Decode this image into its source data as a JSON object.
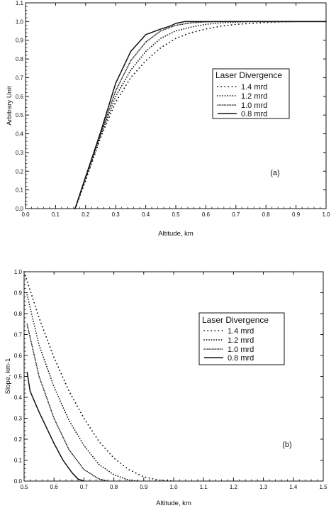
{
  "chart_data": [
    {
      "type": "line",
      "panel_label": "(a)",
      "xlabel": "Altitude, km",
      "ylabel": "Arbitrary Unit",
      "xlim": [
        0.0,
        1.0
      ],
      "ylim": [
        0.0,
        1.1
      ],
      "xticks": [
        "0.0",
        "0.1",
        "0.2",
        "0.3",
        "0.4",
        "0.5",
        "0.6",
        "0.7",
        "0.8",
        "0.9",
        "1.0"
      ],
      "yticks": [
        "0.0",
        "0.1",
        "0.2",
        "0.3",
        "0.4",
        "0.5",
        "0.6",
        "0.7",
        "0.8",
        "0.9",
        "1.0",
        "1.1"
      ],
      "legend_title": "Laser Divergence",
      "legend_position": "center-right",
      "grid": false,
      "series": [
        {
          "name": "1.4 mrd",
          "style": "sparse-dot",
          "x": [
            0.165,
            0.2,
            0.25,
            0.3,
            0.35,
            0.4,
            0.45,
            0.5,
            0.55,
            0.6,
            0.65,
            0.7,
            0.75,
            0.8,
            0.85,
            0.9,
            0.95,
            1.0
          ],
          "y": [
            0.0,
            0.15,
            0.38,
            0.57,
            0.7,
            0.79,
            0.86,
            0.91,
            0.94,
            0.96,
            0.975,
            0.985,
            0.99,
            0.995,
            0.998,
            1.0,
            1.0,
            1.0
          ]
        },
        {
          "name": "1.2 mrd",
          "style": "dot",
          "x": [
            0.165,
            0.2,
            0.25,
            0.3,
            0.35,
            0.4,
            0.45,
            0.5,
            0.55,
            0.6,
            0.65,
            0.7,
            0.75,
            0.8,
            0.85,
            0.9,
            0.95,
            1.0
          ],
          "y": [
            0.0,
            0.16,
            0.39,
            0.6,
            0.74,
            0.84,
            0.91,
            0.95,
            0.97,
            0.985,
            0.993,
            0.997,
            1.0,
            1.0,
            1.0,
            1.0,
            1.0,
            1.0
          ]
        },
        {
          "name": "1.0 mrd",
          "style": "dense-dot",
          "x": [
            0.165,
            0.2,
            0.25,
            0.3,
            0.35,
            0.4,
            0.45,
            0.5,
            0.55,
            0.6,
            0.65,
            0.7,
            0.75,
            0.8,
            0.85,
            0.9,
            0.95,
            1.0
          ],
          "y": [
            0.0,
            0.17,
            0.4,
            0.63,
            0.79,
            0.89,
            0.95,
            0.98,
            0.993,
            0.998,
            1.0,
            1.0,
            1.0,
            1.0,
            1.0,
            1.0,
            1.0,
            1.0
          ]
        },
        {
          "name": "0.8 mrd",
          "style": "solid",
          "x": [
            0.165,
            0.2,
            0.25,
            0.3,
            0.35,
            0.4,
            0.45,
            0.48,
            0.5,
            0.53,
            0.55,
            0.6,
            0.7,
            0.8,
            0.9,
            1.0
          ],
          "y": [
            0.0,
            0.17,
            0.41,
            0.67,
            0.84,
            0.93,
            0.96,
            0.975,
            0.99,
            1.0,
            1.0,
            1.0,
            1.0,
            1.0,
            1.0,
            1.0
          ]
        }
      ]
    },
    {
      "type": "line",
      "panel_label": "(b)",
      "xlabel": "Altitude, km",
      "ylabel": "Slope, km-1",
      "xlim": [
        0.5,
        1.5
      ],
      "ylim": [
        0.0,
        1.0
      ],
      "xticks": [
        "0.5",
        "0.6",
        "0.7",
        "0.8",
        "0.9",
        "1.0",
        "1.1",
        "1.2",
        "1.3",
        "1.4",
        "1.5"
      ],
      "yticks": [
        "0.0",
        "0.1",
        "0.2",
        "0.3",
        "0.4",
        "0.5",
        "0.6",
        "0.7",
        "0.8",
        "0.9",
        "1.0"
      ],
      "legend_title": "Laser Divergence",
      "legend_position": "center-right",
      "grid": false,
      "series": [
        {
          "name": "1.4 mrd",
          "style": "sparse-dot",
          "x": [
            0.5,
            0.55,
            0.6,
            0.65,
            0.7,
            0.75,
            0.8,
            0.85,
            0.9,
            0.95,
            1.0
          ],
          "y": [
            1.0,
            0.78,
            0.59,
            0.43,
            0.3,
            0.19,
            0.11,
            0.055,
            0.02,
            0.005,
            0.0
          ]
        },
        {
          "name": "1.2 mrd",
          "style": "dot",
          "x": [
            0.51,
            0.55,
            0.6,
            0.65,
            0.7,
            0.75,
            0.8,
            0.85,
            0.88
          ],
          "y": [
            0.89,
            0.65,
            0.45,
            0.29,
            0.17,
            0.08,
            0.03,
            0.005,
            0.0
          ]
        },
        {
          "name": "1.0 mrd",
          "style": "dense-dot",
          "x": [
            0.51,
            0.55,
            0.6,
            0.65,
            0.7,
            0.75,
            0.78
          ],
          "y": [
            0.75,
            0.5,
            0.3,
            0.15,
            0.055,
            0.01,
            0.0
          ]
        },
        {
          "name": "0.8 mrd",
          "style": "solid",
          "x": [
            0.51,
            0.52,
            0.55,
            0.6,
            0.63,
            0.66,
            0.68,
            0.7
          ],
          "y": [
            0.52,
            0.43,
            0.33,
            0.18,
            0.1,
            0.04,
            0.01,
            0.0
          ]
        }
      ]
    }
  ]
}
